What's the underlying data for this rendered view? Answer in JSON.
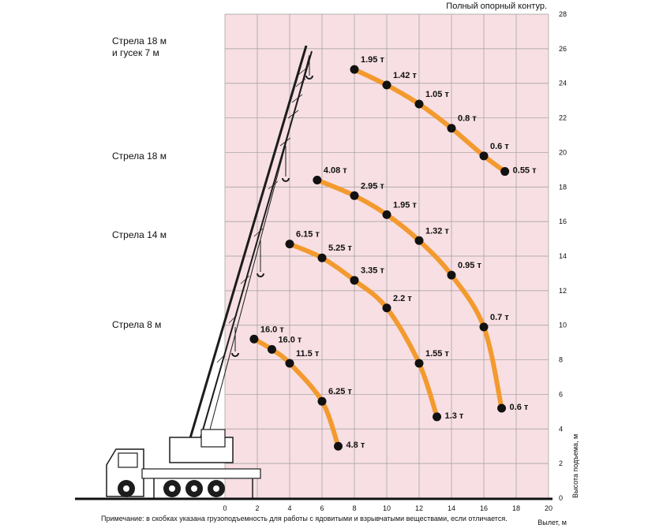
{
  "header": "Полный опорный контур.",
  "note": "Примечание: в скобках указана грузоподъемность для работы с ядовитыми и взрывчатыми веществами, если отличается.",
  "colors": {
    "grid_bg": "#f7dfe3",
    "grid_line": "#9c9c9c",
    "curve": "#f39a2f",
    "point": "#111111",
    "crane": "#1c1c1c"
  },
  "chart_data": {
    "type": "line",
    "xlabel": "Вылет, м",
    "ylabel": "Высота подъема, м",
    "xlim": [
      0,
      20
    ],
    "ylim": [
      0,
      28
    ],
    "x_ticks": [
      0,
      2,
      4,
      6,
      8,
      10,
      12,
      14,
      16,
      18,
      20
    ],
    "y_ticks": [
      0,
      2,
      4,
      6,
      8,
      10,
      12,
      14,
      16,
      18,
      20,
      22,
      24,
      26,
      28
    ],
    "grid": true,
    "series": [
      {
        "name": "Стрела 18 м и гусек 7 м",
        "points": [
          {
            "x": 8,
            "y": 24.8,
            "label": "1.95 т"
          },
          {
            "x": 10,
            "y": 23.9,
            "label": "1.42 т"
          },
          {
            "x": 12,
            "y": 22.8,
            "label": "1.05 т"
          },
          {
            "x": 14,
            "y": 21.4,
            "label": "0.8 т"
          },
          {
            "x": 16,
            "y": 19.8,
            "label": "0.6 т"
          },
          {
            "x": 17.3,
            "y": 18.9,
            "label": "0.55 т"
          }
        ]
      },
      {
        "name": "Стрела 18 м",
        "points": [
          {
            "x": 5.7,
            "y": 18.4,
            "label": "4.08 т"
          },
          {
            "x": 8,
            "y": 17.5,
            "label": "2.95 т"
          },
          {
            "x": 10,
            "y": 16.4,
            "label": "1.95 т"
          },
          {
            "x": 12,
            "y": 14.9,
            "label": "1.32 т"
          },
          {
            "x": 14,
            "y": 12.9,
            "label": "0.95 т"
          },
          {
            "x": 16,
            "y": 9.9,
            "label": "0.7 т"
          },
          {
            "x": 17.1,
            "y": 5.2,
            "label": "0.6 т"
          }
        ]
      },
      {
        "name": "Стрела 14 м",
        "points": [
          {
            "x": 4,
            "y": 14.7,
            "label": "6.15 т"
          },
          {
            "x": 6,
            "y": 13.9,
            "label": "5.25 т"
          },
          {
            "x": 8,
            "y": 12.6,
            "label": "3.35 т"
          },
          {
            "x": 10,
            "y": 11.0,
            "label": "2.2 т"
          },
          {
            "x": 12,
            "y": 7.8,
            "label": "1.55 т"
          },
          {
            "x": 13.1,
            "y": 4.7,
            "label": "1.3 т"
          }
        ]
      },
      {
        "name": "Стрела 8 м",
        "points": [
          {
            "x": 1.8,
            "y": 9.2,
            "label": "16.0 т"
          },
          {
            "x": 2.9,
            "y": 8.6,
            "label": "16.0 т"
          },
          {
            "x": 4,
            "y": 7.8,
            "label": "11.5 т"
          },
          {
            "x": 6,
            "y": 5.6,
            "label": "6.25 т"
          },
          {
            "x": 7,
            "y": 3.0,
            "label": "4.8 т"
          }
        ]
      }
    ]
  }
}
